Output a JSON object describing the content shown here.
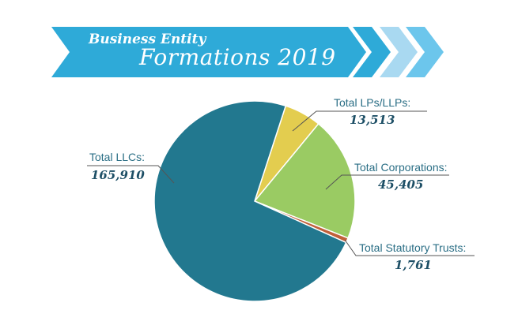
{
  "banner": {
    "line1": "Business Entity",
    "line2": "Formations 2019"
  },
  "colors": {
    "banner": "#2eaad8",
    "chevron_light": "#a9d9f1",
    "chevron_mid": "#6cc6ec"
  },
  "chart_data": {
    "type": "pie",
    "title": "Business Entity Formations 2019",
    "slices": [
      {
        "label": "Total LPs/LLPs:",
        "value": 13513,
        "value_label": "13,513",
        "color": "#e3cd4f"
      },
      {
        "label": "Total Corporations:",
        "value": 45405,
        "value_label": "45,405",
        "color": "#9acb63"
      },
      {
        "label": "Total Statutory Trusts:",
        "value": 1761,
        "value_label": "1,761",
        "color": "#c0603a"
      },
      {
        "label": "Total LLCs:",
        "value": 165910,
        "value_label": "165,910",
        "color": "#22788f"
      }
    ],
    "start_angle_deg": 18
  }
}
